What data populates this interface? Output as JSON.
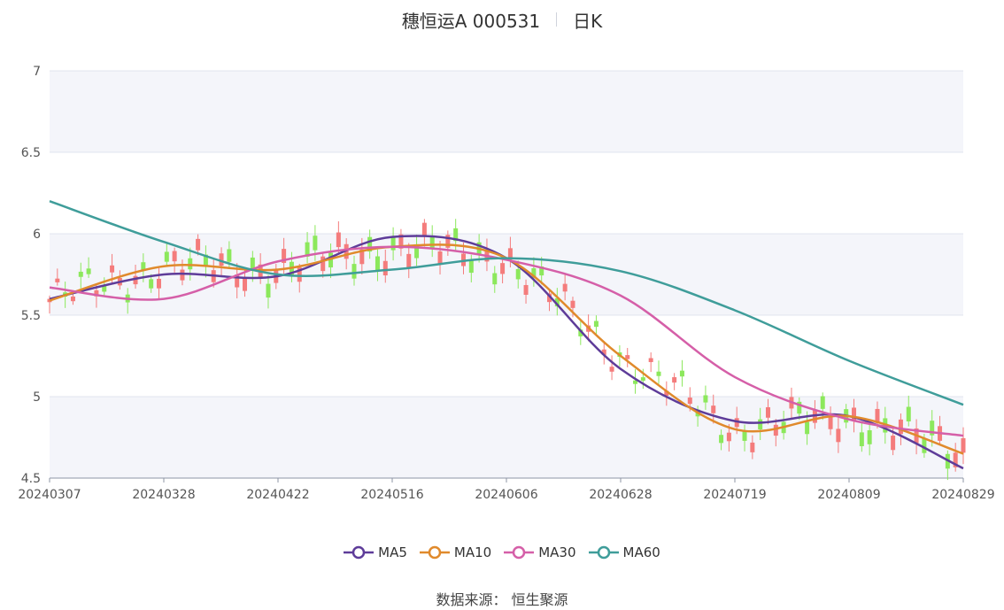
{
  "header": {
    "stock": "穗恒运A 000531",
    "period": "日K"
  },
  "footer": {
    "source_label": "数据来源：",
    "source_name": "恒生聚源"
  },
  "colors": {
    "up": "#f47c7c",
    "down": "#8ce85c",
    "MA5": "#5e3c99",
    "MA10": "#e08a2c",
    "MA30": "#d55fa8",
    "MA60": "#3f9d9a",
    "band": "#f4f5fa",
    "grid": "#e0e4ef"
  },
  "chart_data": {
    "type": "candlestick",
    "title": "穗恒运A 000531",
    "ylim": [
      4.5,
      7
    ],
    "y_ticks": [
      "4.5",
      "5",
      "5.5",
      "6",
      "6.5",
      "7"
    ],
    "x_ticks": [
      "20240307",
      "20240328",
      "20240422",
      "20240516",
      "20240606",
      "20240628",
      "20240719",
      "20240809",
      "20240829"
    ],
    "series": [
      {
        "name": "MA5",
        "x": [
          "20240307",
          "20240328",
          "20240422",
          "20240516",
          "20240606",
          "20240628",
          "20240719",
          "20240809",
          "20240829"
        ],
        "values": [
          5.6,
          5.75,
          5.74,
          5.98,
          5.85,
          5.17,
          4.85,
          4.88,
          4.56
        ]
      },
      {
        "name": "MA10",
        "x": [
          "20240307",
          "20240328",
          "20240422",
          "20240516",
          "20240606",
          "20240628",
          "20240719",
          "20240809",
          "20240829"
        ],
        "values": [
          5.59,
          5.8,
          5.78,
          5.92,
          5.85,
          5.25,
          4.8,
          4.88,
          4.65
        ]
      },
      {
        "name": "MA30",
        "x": [
          "20240307",
          "20240328",
          "20240422",
          "20240516",
          "20240606",
          "20240628",
          "20240719",
          "20240809",
          "20240829"
        ],
        "values": [
          5.67,
          5.6,
          5.83,
          5.92,
          5.84,
          5.62,
          5.12,
          4.86,
          4.76
        ]
      },
      {
        "name": "MA60",
        "x": [
          "20240307",
          "20240328",
          "20240422",
          "20240516",
          "20240606",
          "20240628",
          "20240719",
          "20240809",
          "20240829"
        ],
        "values": [
          6.2,
          5.95,
          5.75,
          5.78,
          5.85,
          5.77,
          5.53,
          5.22,
          4.95
        ]
      }
    ]
  }
}
